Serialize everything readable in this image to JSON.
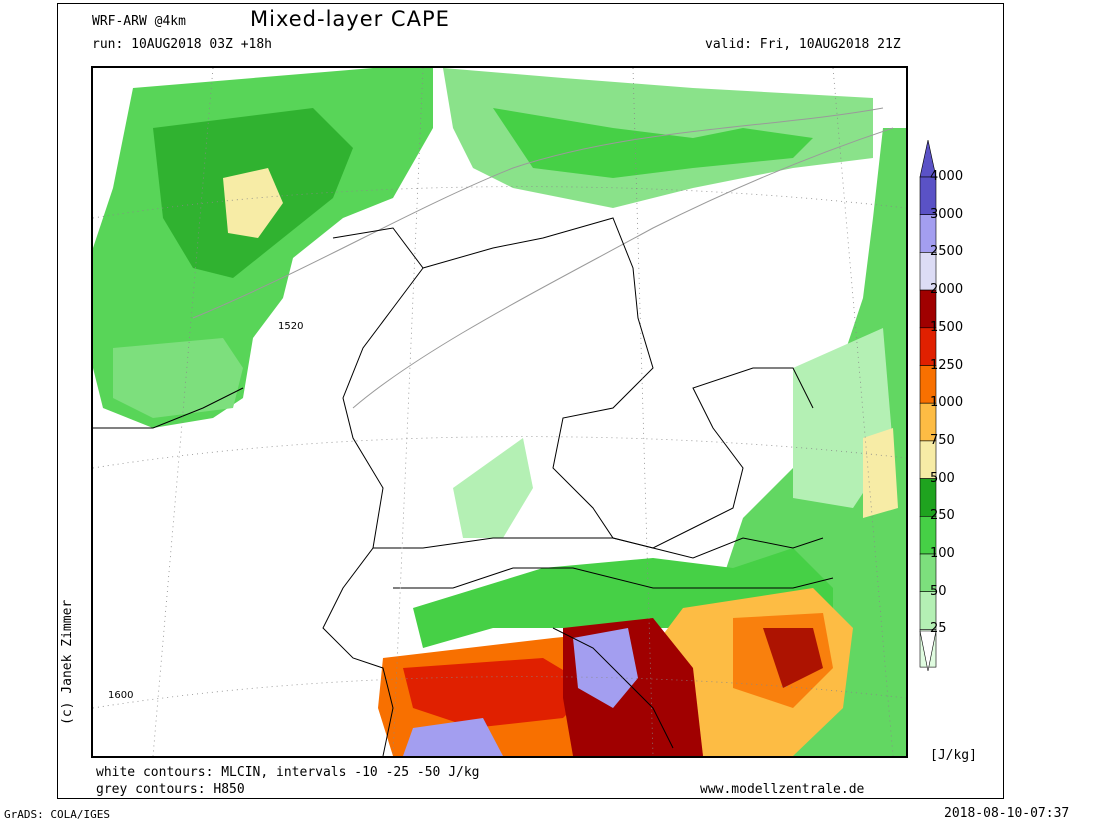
{
  "header": {
    "model": "WRF-ARW @4km",
    "title": "Mixed-layer CAPE",
    "run": "run: 10AUG2018 03Z +18h",
    "valid": "valid: Fri, 10AUG2018 21Z"
  },
  "credit": "(c) Janek Zimmer",
  "contour_labels": [
    "1520",
    "1600"
  ],
  "colorbar": {
    "ticks": [
      "4000",
      "3000",
      "2500",
      "2000",
      "1500",
      "1250",
      "1000",
      "750",
      "500",
      "250",
      "100",
      "50",
      "25"
    ],
    "colors": [
      "#5a52c6",
      "#a39ef0",
      "#dcdcf5",
      "#a00000",
      "#e02000",
      "#f87000",
      "#fdbc44",
      "#f7eca6",
      "#1fa31f",
      "#46d046",
      "#7ddf7d",
      "#b4f0b4",
      "#e0fce0"
    ],
    "units": "[J/kg]"
  },
  "footer": {
    "line1": "white contours: MLCIN, intervals -10 -25 -50 J/kg",
    "line2": "grey contours: H850",
    "website": "www.modellzentrale.de",
    "grads": "GrADS: COLA/IGES",
    "timestamp": "2018-08-10-07:37"
  }
}
